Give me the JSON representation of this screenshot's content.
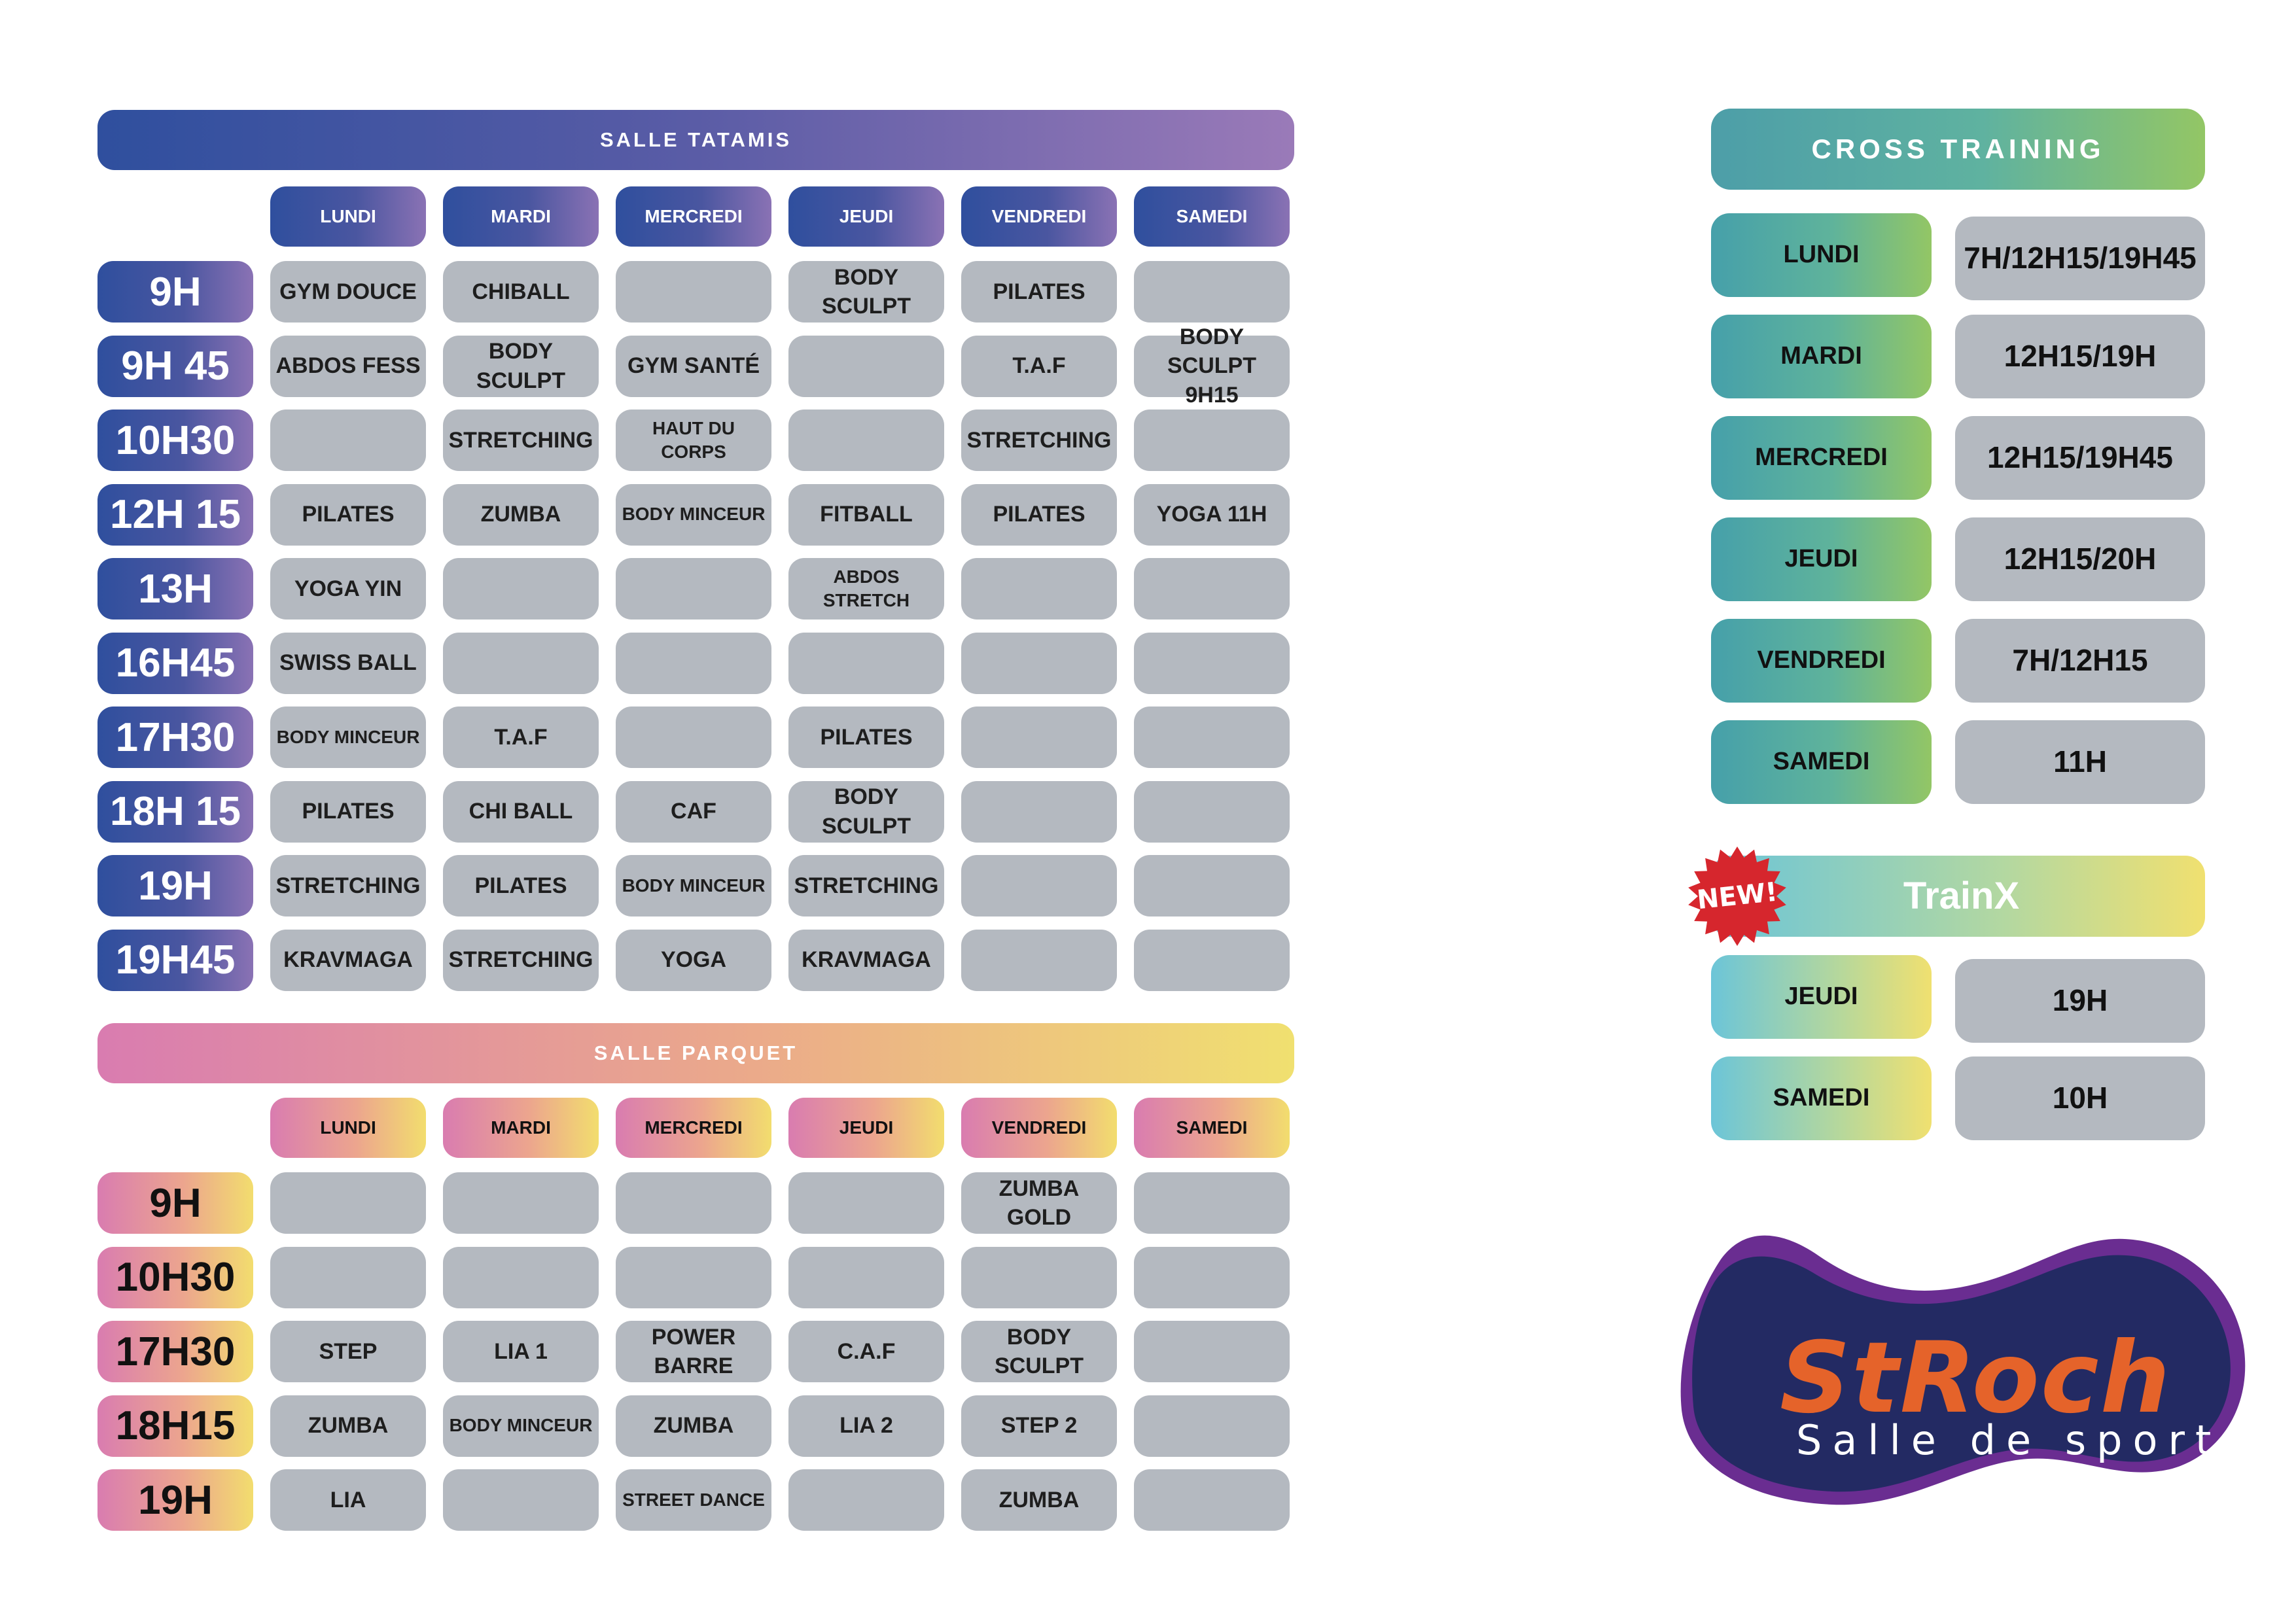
{
  "tatamis": {
    "title": "SALLE TATAMIS",
    "days": [
      "LUNDI",
      "MARDI",
      "MERCREDI",
      "JEUDI",
      "VENDREDI",
      "SAMEDI"
    ],
    "rows": [
      {
        "time": "9H",
        "cells": [
          "GYM DOUCE",
          "CHIBALL",
          "",
          "BODY SCULPT",
          "PILATES",
          ""
        ]
      },
      {
        "time": "9H 45",
        "cells": [
          "ABDOS FESS",
          "BODY SCULPT",
          "GYM SANTÉ",
          "",
          "T.A.F",
          "BODY SCULPT\n9H15"
        ]
      },
      {
        "time": "10H30",
        "cells": [
          "",
          "STRETCHING",
          "HAUT DU CORPS",
          "",
          "STRETCHING",
          ""
        ]
      },
      {
        "time": "12H 15",
        "cells": [
          "PILATES",
          "ZUMBA",
          "BODY MINCEUR",
          "FITBALL",
          "PILATES",
          "YOGA 11H"
        ]
      },
      {
        "time": "13H",
        "cells": [
          "YOGA YIN",
          "",
          "",
          "ABDOS STRETCH",
          "",
          ""
        ]
      },
      {
        "time": "16H45",
        "cells": [
          "SWISS BALL",
          "",
          "",
          "",
          "",
          ""
        ]
      },
      {
        "time": "17H30",
        "cells": [
          "BODY MINCEUR",
          "T.A.F",
          "",
          "PILATES",
          "",
          ""
        ]
      },
      {
        "time": "18H 15",
        "cells": [
          "PILATES",
          "CHI BALL",
          "CAF",
          "BODY SCULPT",
          "",
          ""
        ]
      },
      {
        "time": "19H",
        "cells": [
          "STRETCHING",
          "PILATES",
          "BODY MINCEUR",
          "STRETCHING",
          "",
          ""
        ]
      },
      {
        "time": "19H45",
        "cells": [
          "KRAVMAGA",
          "STRETCHING",
          "YOGA",
          "KRAVMAGA",
          "",
          ""
        ]
      }
    ]
  },
  "parquet": {
    "title": "SALLE PARQUET",
    "days": [
      "LUNDI",
      "MARDI",
      "MERCREDI",
      "JEUDI",
      "VENDREDI",
      "SAMEDI"
    ],
    "rows": [
      {
        "time": "9H",
        "cells": [
          "",
          "",
          "",
          "",
          "ZUMBA GOLD",
          ""
        ]
      },
      {
        "time": "10H30",
        "cells": [
          "",
          "",
          "",
          "",
          "",
          ""
        ]
      },
      {
        "time": "17H30",
        "cells": [
          "STEP",
          "LIA 1",
          "POWER BARRE",
          "C.A.F",
          "BODY SCULPT",
          ""
        ]
      },
      {
        "time": "18H15",
        "cells": [
          "ZUMBA",
          "BODY MINCEUR",
          "ZUMBA",
          "LIA 2",
          "STEP 2",
          ""
        ]
      },
      {
        "time": "19H",
        "cells": [
          "LIA",
          "",
          "STREET DANCE",
          "",
          "ZUMBA",
          ""
        ]
      }
    ]
  },
  "cross_training": {
    "title": "CROSS TRAINING",
    "rows": [
      {
        "day": "LUNDI",
        "time": "7H/12H15/19H45"
      },
      {
        "day": "MARDI",
        "time": "12H15/19H"
      },
      {
        "day": "MERCREDI",
        "time": "12H15/19H45"
      },
      {
        "day": "JEUDI",
        "time": "12H15/20H"
      },
      {
        "day": "VENDREDI",
        "time": "7H/12H15"
      },
      {
        "day": "SAMEDI",
        "time": "11H"
      }
    ]
  },
  "trainx": {
    "badge": "NEW!",
    "title": "TrainX",
    "rows": [
      {
        "day": "JEUDI",
        "time": "19H"
      },
      {
        "day": "SAMEDI",
        "time": "10H"
      }
    ]
  },
  "logo": {
    "brand": "StRoch",
    "tagline": "Salle de sports"
  }
}
